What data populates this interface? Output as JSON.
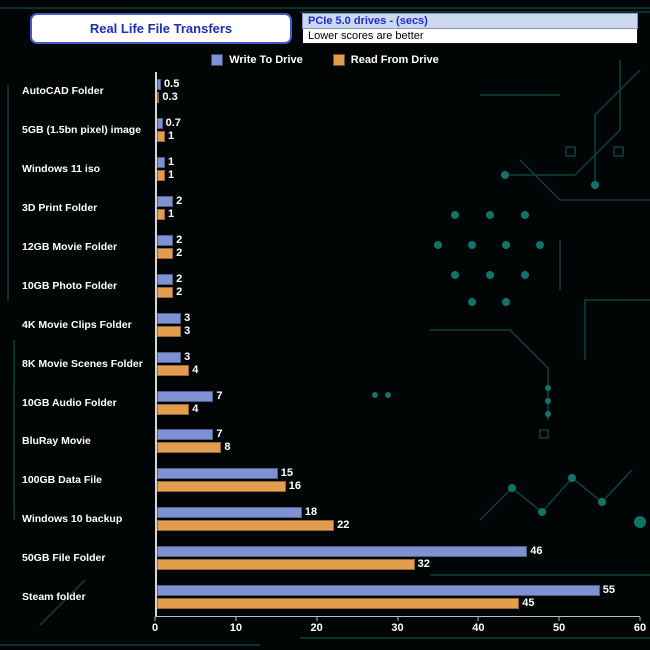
{
  "header": {
    "title": "Real Life File Transfers",
    "subtitle_primary": "PCIe 5.0 drives - (secs)",
    "subtitle_secondary": "Lower scores are better"
  },
  "legend": {
    "items": [
      {
        "label": "Write To  Drive",
        "color": "#7d92d2"
      },
      {
        "label": "Read From  Drive",
        "color": "#e39d4e"
      }
    ]
  },
  "colors": {
    "background": "#020505",
    "write_bar": "#7d92d2",
    "read_bar": "#e39d4e",
    "title_text": "#1c2fb0",
    "title_border": "#3c5ac8",
    "subtitle_bg": "#ccd8ef",
    "circuit_trace": "#0d4a45",
    "circuit_dot": "#11736a",
    "axis_text": "#ffffff"
  },
  "chart_data": {
    "type": "bar",
    "orientation": "horizontal",
    "title": "Real Life File Transfers",
    "subtitle": "PCIe 5.0 drives - (secs) — Lower scores are better",
    "xlabel": "seconds",
    "ylabel": "",
    "xlim": [
      0,
      60
    ],
    "xticks": [
      0,
      10,
      20,
      30,
      40,
      50,
      60
    ],
    "grid": false,
    "legend_position": "top",
    "categories": [
      "AutoCAD Folder",
      "5GB (1.5bn pixel) image",
      "Windows 11 iso",
      "3D Print Folder",
      "12GB Movie Folder",
      "10GB Photo Folder",
      "4K Movie Clips Folder",
      "8K Movie Scenes Folder",
      "10GB Audio Folder",
      "BluRay Movie",
      "100GB Data File",
      "Windows 10 backup",
      "50GB File Folder",
      "Steam folder"
    ],
    "series": [
      {
        "name": "Write To Drive",
        "key": "write",
        "color": "#7d92d2",
        "values": [
          0.5,
          0.7,
          1,
          2,
          2,
          2,
          3,
          3,
          7,
          7,
          15,
          18,
          46,
          55
        ]
      },
      {
        "name": "Read From Drive",
        "key": "read",
        "color": "#e39d4e",
        "values": [
          0.3,
          1,
          1,
          1,
          2,
          2,
          3,
          4,
          4,
          8,
          16,
          22,
          32,
          45
        ]
      }
    ]
  }
}
